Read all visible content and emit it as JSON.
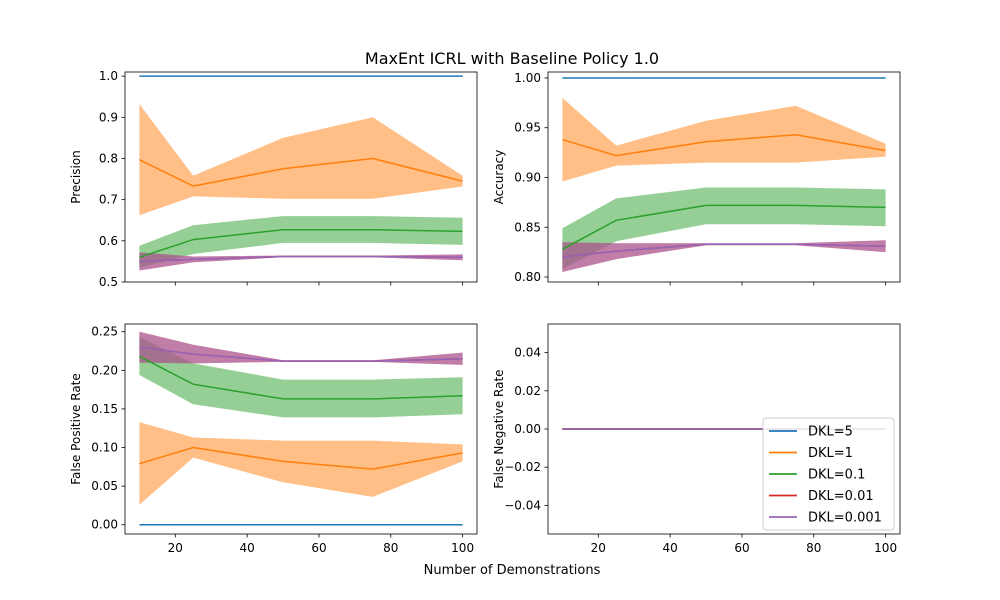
{
  "figure": {
    "title": "MaxEnt ICRL with Baseline Policy 1.0",
    "xlabel": "Number of Demonstrations"
  },
  "legend": {
    "placement": "lower-right of bottom-right subplot",
    "entries": [
      {
        "label": "DKL=5",
        "color": "#1f77b4"
      },
      {
        "label": "DKL=1",
        "color": "#ff7f0e"
      },
      {
        "label": "DKL=0.1",
        "color": "#2ca02c"
      },
      {
        "label": "DKL=0.01",
        "color": "#d62728"
      },
      {
        "label": "DKL=0.001",
        "color": "#9467bd"
      }
    ]
  },
  "chart_data": [
    {
      "type": "line",
      "ylabel": "Precision",
      "xlim": [
        6,
        104
      ],
      "ylim": [
        0.5,
        1.01
      ],
      "xticks": [
        20,
        40,
        60,
        80,
        100
      ],
      "yticks": [
        0.5,
        0.6,
        0.7,
        0.8,
        0.9,
        1.0
      ],
      "ytick_labels": [
        "0.5",
        "0.6",
        "0.7",
        "0.8",
        "0.9",
        "1.0"
      ],
      "show_xtick_labels": false,
      "x": [
        10,
        25,
        50,
        75,
        100
      ],
      "series": [
        {
          "name": "DKL=5",
          "color": "#1f77b4",
          "values": [
            1.0,
            1.0,
            1.0,
            1.0,
            1.0
          ],
          "lower": [
            1.0,
            1.0,
            1.0,
            1.0,
            1.0
          ],
          "upper": [
            1.0,
            1.0,
            1.0,
            1.0,
            1.0
          ]
        },
        {
          "name": "DKL=1",
          "color": "#ff7f0e",
          "values": [
            0.797,
            0.733,
            0.775,
            0.8,
            0.745
          ],
          "lower": [
            0.662,
            0.708,
            0.702,
            0.702,
            0.732
          ],
          "upper": [
            0.932,
            0.758,
            0.85,
            0.9,
            0.758
          ]
        },
        {
          "name": "DKL=0.1",
          "color": "#2ca02c",
          "values": [
            0.56,
            0.603,
            0.627,
            0.627,
            0.623
          ],
          "lower": [
            0.535,
            0.568,
            0.595,
            0.595,
            0.59
          ],
          "upper": [
            0.588,
            0.638,
            0.66,
            0.66,
            0.656
          ]
        },
        {
          "name": "DKL=0.01",
          "color": "#d62728",
          "values": [
            0.55,
            0.555,
            0.562,
            0.562,
            0.56
          ],
          "lower": [
            0.528,
            0.548,
            0.56,
            0.56,
            0.553
          ],
          "upper": [
            0.572,
            0.562,
            0.564,
            0.564,
            0.567
          ]
        },
        {
          "name": "DKL=0.001",
          "color": "#9467bd",
          "values": [
            0.55,
            0.555,
            0.562,
            0.562,
            0.56
          ],
          "lower": [
            0.528,
            0.548,
            0.56,
            0.56,
            0.553
          ],
          "upper": [
            0.572,
            0.562,
            0.564,
            0.564,
            0.567
          ]
        }
      ]
    },
    {
      "type": "line",
      "ylabel": "Accuracy",
      "xlim": [
        6,
        104
      ],
      "ylim": [
        0.795,
        1.006
      ],
      "xticks": [
        20,
        40,
        60,
        80,
        100
      ],
      "yticks": [
        0.8,
        0.85,
        0.9,
        0.95,
        1.0
      ],
      "ytick_labels": [
        "0.80",
        "0.85",
        "0.90",
        "0.95",
        "1.00"
      ],
      "show_xtick_labels": false,
      "x": [
        10,
        25,
        50,
        75,
        100
      ],
      "series": [
        {
          "name": "DKL=5",
          "color": "#1f77b4",
          "values": [
            1.0,
            1.0,
            1.0,
            1.0,
            1.0
          ],
          "lower": [
            1.0,
            1.0,
            1.0,
            1.0,
            1.0
          ],
          "upper": [
            1.0,
            1.0,
            1.0,
            1.0,
            1.0
          ]
        },
        {
          "name": "DKL=1",
          "color": "#ff7f0e",
          "values": [
            0.938,
            0.922,
            0.936,
            0.943,
            0.927
          ],
          "lower": [
            0.896,
            0.912,
            0.915,
            0.915,
            0.921
          ],
          "upper": [
            0.98,
            0.932,
            0.957,
            0.972,
            0.934
          ]
        },
        {
          "name": "DKL=0.1",
          "color": "#2ca02c",
          "values": [
            0.828,
            0.857,
            0.872,
            0.872,
            0.87
          ],
          "lower": [
            0.808,
            0.836,
            0.853,
            0.853,
            0.851
          ],
          "upper": [
            0.849,
            0.879,
            0.89,
            0.89,
            0.888
          ]
        },
        {
          "name": "DKL=0.01",
          "color": "#d62728",
          "values": [
            0.82,
            0.826,
            0.833,
            0.833,
            0.831
          ],
          "lower": [
            0.805,
            0.818,
            0.832,
            0.832,
            0.825
          ],
          "upper": [
            0.835,
            0.834,
            0.834,
            0.834,
            0.837
          ]
        },
        {
          "name": "DKL=0.001",
          "color": "#9467bd",
          "values": [
            0.82,
            0.826,
            0.833,
            0.833,
            0.831
          ],
          "lower": [
            0.805,
            0.818,
            0.832,
            0.832,
            0.825
          ],
          "upper": [
            0.835,
            0.834,
            0.834,
            0.834,
            0.837
          ]
        }
      ]
    },
    {
      "type": "line",
      "ylabel": "False Positive Rate",
      "xlim": [
        6,
        104
      ],
      "ylim": [
        -0.012,
        0.26
      ],
      "xticks": [
        20,
        40,
        60,
        80,
        100
      ],
      "yticks": [
        0.0,
        0.05,
        0.1,
        0.15,
        0.2,
        0.25
      ],
      "ytick_labels": [
        "0.00",
        "0.05",
        "0.10",
        "0.15",
        "0.20",
        "0.25"
      ],
      "show_xtick_labels": true,
      "x": [
        10,
        25,
        50,
        75,
        100
      ],
      "series": [
        {
          "name": "DKL=5",
          "color": "#1f77b4",
          "values": [
            0.0,
            0.0,
            0.0,
            0.0,
            0.0
          ],
          "lower": [
            0.0,
            0.0,
            0.0,
            0.0,
            0.0
          ],
          "upper": [
            0.0,
            0.0,
            0.0,
            0.0,
            0.0
          ]
        },
        {
          "name": "DKL=1",
          "color": "#ff7f0e",
          "values": [
            0.079,
            0.1,
            0.082,
            0.072,
            0.093
          ],
          "lower": [
            0.026,
            0.087,
            0.055,
            0.036,
            0.082
          ],
          "upper": [
            0.133,
            0.113,
            0.109,
            0.109,
            0.104
          ]
        },
        {
          "name": "DKL=0.1",
          "color": "#2ca02c",
          "values": [
            0.218,
            0.182,
            0.163,
            0.163,
            0.167
          ],
          "lower": [
            0.194,
            0.156,
            0.139,
            0.139,
            0.143
          ],
          "upper": [
            0.243,
            0.209,
            0.188,
            0.188,
            0.191
          ]
        },
        {
          "name": "DKL=0.01",
          "color": "#d62728",
          "values": [
            0.23,
            0.221,
            0.212,
            0.212,
            0.215
          ],
          "lower": [
            0.21,
            0.209,
            0.211,
            0.211,
            0.207
          ],
          "upper": [
            0.25,
            0.233,
            0.213,
            0.213,
            0.223
          ]
        },
        {
          "name": "DKL=0.001",
          "color": "#9467bd",
          "values": [
            0.23,
            0.221,
            0.212,
            0.212,
            0.215
          ],
          "lower": [
            0.21,
            0.209,
            0.211,
            0.211,
            0.207
          ],
          "upper": [
            0.25,
            0.233,
            0.213,
            0.213,
            0.223
          ]
        }
      ]
    },
    {
      "type": "line",
      "ylabel": "False Negative Rate",
      "xlim": [
        6,
        104
      ],
      "ylim": [
        -0.055,
        0.055
      ],
      "xticks": [
        20,
        40,
        60,
        80,
        100
      ],
      "yticks": [
        -0.04,
        -0.02,
        0.0,
        0.02,
        0.04
      ],
      "ytick_labels": [
        "−0.04",
        "−0.02",
        "0.00",
        "0.02",
        "0.04"
      ],
      "show_xtick_labels": true,
      "x": [
        10,
        25,
        50,
        75,
        100
      ],
      "series": [
        {
          "name": "DKL=5",
          "color": "#1f77b4",
          "values": [
            0,
            0,
            0,
            0,
            0
          ],
          "lower": [
            0,
            0,
            0,
            0,
            0
          ],
          "upper": [
            0,
            0,
            0,
            0,
            0
          ]
        },
        {
          "name": "DKL=1",
          "color": "#ff7f0e",
          "values": [
            0,
            0,
            0,
            0,
            0
          ],
          "lower": [
            0,
            0,
            0,
            0,
            0
          ],
          "upper": [
            0,
            0,
            0,
            0,
            0
          ]
        },
        {
          "name": "DKL=0.1",
          "color": "#2ca02c",
          "values": [
            0,
            0,
            0,
            0,
            0
          ],
          "lower": [
            0,
            0,
            0,
            0,
            0
          ],
          "upper": [
            0,
            0,
            0,
            0,
            0
          ]
        },
        {
          "name": "DKL=0.01",
          "color": "#d62728",
          "values": [
            0,
            0,
            0,
            0,
            0
          ],
          "lower": [
            0,
            0,
            0,
            0,
            0
          ],
          "upper": [
            0,
            0,
            0,
            0,
            0
          ]
        },
        {
          "name": "DKL=0.001",
          "color": "#9467bd",
          "values": [
            0,
            0,
            0,
            0,
            0
          ],
          "lower": [
            0,
            0,
            0,
            0,
            0
          ],
          "upper": [
            0,
            0,
            0,
            0,
            0
          ]
        }
      ]
    }
  ]
}
